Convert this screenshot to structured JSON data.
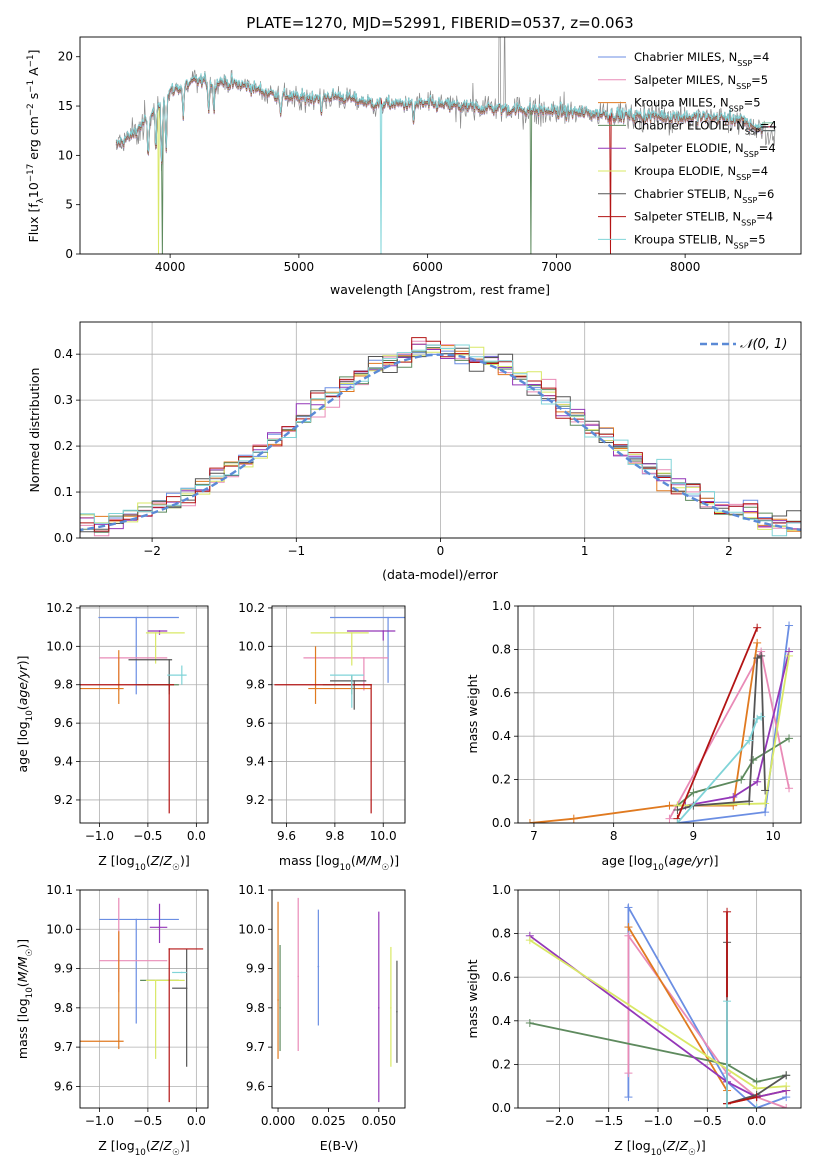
{
  "chart_data": [
    {
      "id": "spectrum",
      "type": "line",
      "title": "PLATE=1270, MJD=52991, FIBERID=0537, z=0.063",
      "xlabel": "wavelength [Angstrom, rest frame]",
      "ylabel": "Flux [f_λ10^-17 erg cm^-2 s^-1 A^-1]",
      "xlim": [
        3300,
        8900
      ],
      "ylim": [
        0,
        22
      ],
      "xticks": [
        4000,
        5000,
        6000,
        7000,
        8000
      ],
      "yticks": [
        0,
        5,
        10,
        15,
        20
      ],
      "continuum": {
        "x": [
          3580,
          3700,
          3850,
          4000,
          4200,
          4400,
          4600,
          4800,
          5000,
          5300,
          5600,
          6000,
          6400,
          6800,
          7200,
          7600,
          8000,
          8400,
          8700
        ],
        "y": [
          11,
          12,
          14,
          16.5,
          17.5,
          17.5,
          17,
          16.2,
          15.8,
          16.0,
          15.2,
          15.2,
          14.8,
          14.6,
          14.3,
          14.0,
          13.9,
          13.7,
          12.0
        ]
      },
      "legend": [
        "Chabrier MILES, N_SSP=4",
        "Salpeter MILES, N_SSP=5",
        "Kroupa MILES, N_SSP=5",
        "Chabrier ELODIE, N_SSP=4",
        "Salpeter ELODIE, N_SSP=4",
        "Kroupa ELODIE, N_SSP=4",
        "Chabrier STELIB, N_SSP=6",
        "Salpeter STELIB, N_SSP=4",
        "Kroupa STELIB, N_SSP=5"
      ],
      "legend_position": "top-right",
      "grid": false
    },
    {
      "id": "residuals",
      "type": "histogram",
      "xlabel": "(data-model)/error",
      "ylabel": "Normed distribution",
      "xlim": [
        -2.5,
        2.5
      ],
      "ylim": [
        0,
        0.47
      ],
      "xticks": [
        -2,
        -1,
        0,
        1,
        2
      ],
      "yticks": [
        0.0,
        0.1,
        0.2,
        0.3,
        0.4
      ],
      "reference_label": "𝒩(0, 1)",
      "legend_position": "top-right",
      "grid": true
    },
    {
      "id": "age_vs_Z",
      "type": "errorbar",
      "xlabel": "Z [log10(Z/Z☉)]",
      "ylabel": "age [log10(age/yr)]",
      "xlim": [
        -1.2,
        0.12
      ],
      "ylim": [
        9.08,
        10.21
      ],
      "xticks": [
        -1.0,
        -0.5,
        0.0
      ],
      "yticks": [
        9.2,
        9.4,
        9.6,
        9.8,
        10.0,
        10.2
      ],
      "points": [
        {
          "x": -0.62,
          "xerr": [
            0.39,
            0.44
          ],
          "y": 10.15,
          "yerr": [
            0.4,
            0.0
          ]
        },
        {
          "x": -0.8,
          "xerr": [
            0.2,
            0.5
          ],
          "y": 9.94,
          "yerr": [
            0.17,
            0.0
          ]
        },
        {
          "x": -0.8,
          "xerr": [
            0.4,
            0.05
          ],
          "y": 9.78,
          "yerr": [
            0.08,
            0.2
          ]
        },
        {
          "x": -0.28,
          "xerr": [
            0.33,
            0.1
          ],
          "y": 9.8,
          "yerr": [
            0.05,
            0.05
          ]
        },
        {
          "x": -0.38,
          "xerr": [
            0.12,
            0.08
          ],
          "y": 10.08,
          "yerr": [
            0.02,
            0.0
          ]
        },
        {
          "x": -0.42,
          "xerr": [
            0.1,
            0.3
          ],
          "y": 10.07,
          "yerr": [
            0.16,
            0.0
          ]
        },
        {
          "x": -0.28,
          "xerr": [
            0.42,
            0.03
          ],
          "y": 9.93,
          "yerr": [
            0.16,
            0.0
          ]
        },
        {
          "x": -0.28,
          "xerr": [
            0.92,
            0.05
          ],
          "y": 9.8,
          "yerr": [
            0.67,
            0.0
          ]
        },
        {
          "x": -0.15,
          "xerr": [
            0.15,
            0.05
          ],
          "y": 9.85,
          "yerr": [
            0.05,
            0.05
          ]
        }
      ],
      "grid": true
    },
    {
      "id": "age_vs_mass",
      "type": "errorbar",
      "xlabel": "mass [log10(M/M☉)]",
      "ylabel": "",
      "xlim": [
        9.54,
        10.09
      ],
      "ylim": [
        9.08,
        10.21
      ],
      "xticks": [
        9.6,
        9.8,
        10.0
      ],
      "yticks": [
        9.2,
        9.4,
        9.6,
        9.8,
        10.0,
        10.2
      ],
      "points": [
        {
          "x": 10.02,
          "xerr": [
            0.24,
            0.1
          ],
          "y": 10.15,
          "yerr": [
            0.34,
            0.0
          ]
        },
        {
          "x": 9.92,
          "xerr": [
            0.25,
            0.1
          ],
          "y": 9.94,
          "yerr": [
            0.17,
            0.0
          ]
        },
        {
          "x": 9.72,
          "xerr": [
            0.03,
            0.23
          ],
          "y": 9.78,
          "yerr": [
            0.08,
            0.22
          ]
        },
        {
          "x": 9.87,
          "xerr": [
            0.12,
            0.08
          ],
          "y": 9.8,
          "yerr": [
            0.05,
            0.05
          ]
        },
        {
          "x": 10.0,
          "xerr": [
            0.15,
            0.05
          ],
          "y": 10.08,
          "yerr": [
            0.05,
            0.0
          ]
        },
        {
          "x": 9.87,
          "xerr": [
            0.17,
            0.07
          ],
          "y": 10.07,
          "yerr": [
            0.17,
            0.0
          ]
        },
        {
          "x": 9.88,
          "xerr": [
            0.1,
            0.05
          ],
          "y": 9.82,
          "yerr": [
            0.15,
            0.0
          ]
        },
        {
          "x": 9.95,
          "xerr": [
            0.4,
            0.0
          ],
          "y": 9.8,
          "yerr": [
            0.67,
            0.0
          ]
        },
        {
          "x": 9.87,
          "xerr": [
            0.09,
            0.05
          ],
          "y": 9.85,
          "yerr": [
            0.17,
            0.0
          ]
        }
      ],
      "grid": true
    },
    {
      "id": "weight_vs_age",
      "type": "line",
      "xlabel": "age [log10(age/yr)]",
      "ylabel": "mass weight",
      "xlim": [
        6.8,
        10.35
      ],
      "ylim": [
        0,
        1.0
      ],
      "xticks": [
        7,
        8,
        9,
        10
      ],
      "yticks": [
        0.0,
        0.2,
        0.4,
        0.6,
        0.8,
        1.0
      ],
      "series": [
        {
          "x": [
            8.8,
            9.9,
            10.2
          ],
          "y": [
            0.0,
            0.05,
            0.91
          ]
        },
        {
          "x": [
            8.7,
            9.85,
            10.2
          ],
          "y": [
            0.02,
            0.79,
            0.16
          ]
        },
        {
          "x": [
            6.95,
            7.5,
            8.7,
            9.5,
            9.8
          ],
          "y": [
            0.0,
            0.02,
            0.08,
            0.08,
            0.83
          ]
        },
        {
          "x": [
            8.8,
            9.0,
            9.6,
            9.75,
            10.2
          ],
          "y": [
            0.08,
            0.14,
            0.2,
            0.29,
            0.39
          ]
        },
        {
          "x": [
            8.9,
            9.5,
            9.8,
            10.2
          ],
          "y": [
            0.08,
            0.12,
            0.19,
            0.79
          ]
        },
        {
          "x": [
            8.8,
            9.9,
            10.2
          ],
          "y": [
            0.08,
            0.09,
            0.77
          ]
        },
        {
          "x": [
            8.8,
            9.0,
            9.7,
            9.8,
            9.85,
            9.9
          ],
          "y": [
            0.06,
            0.08,
            0.1,
            0.76,
            0.77,
            0.15
          ]
        },
        {
          "x": [
            8.8,
            9.8
          ],
          "y": [
            0.02,
            0.9
          ]
        },
        {
          "x": [
            8.8,
            9.7,
            9.8,
            9.85
          ],
          "y": [
            0.0,
            0.38,
            0.48,
            0.49
          ]
        }
      ],
      "grid": true
    },
    {
      "id": "mass_vs_Z",
      "type": "errorbar",
      "xlabel": "Z [log10(Z/Z☉)]",
      "ylabel": "mass [log10(M/M☉)]",
      "xlim": [
        -1.2,
        0.12
      ],
      "ylim": [
        9.545,
        10.1
      ],
      "xticks": [
        -1.0,
        -0.5,
        0.0
      ],
      "yticks": [
        9.6,
        9.7,
        9.8,
        9.9,
        10.0,
        10.1
      ],
      "points": [
        {
          "x": -0.62,
          "xerr": [
            0.38,
            0.44
          ],
          "y": 10.025,
          "yerr": [
            0.265,
            0.0
          ]
        },
        {
          "x": -0.8,
          "xerr": [
            0.2,
            0.5
          ],
          "y": 9.92,
          "yerr": [
            0.08,
            0.16
          ]
        },
        {
          "x": -0.8,
          "xerr": [
            0.4,
            0.05
          ],
          "y": 9.715,
          "yerr": [
            0.02,
            0.28
          ]
        },
        {
          "x": -0.28,
          "xerr": [
            0.3,
            0.1
          ],
          "y": 9.87,
          "yerr": [
            0.0,
            0.0
          ]
        },
        {
          "x": -0.38,
          "xerr": [
            0.1,
            0.08
          ],
          "y": 10.005,
          "yerr": [
            0.04,
            0.06
          ]
        },
        {
          "x": -0.42,
          "xerr": [
            0.1,
            0.3
          ],
          "y": 9.87,
          "yerr": [
            0.2,
            0.0
          ]
        },
        {
          "x": -0.1,
          "xerr": [
            0.15,
            0.0
          ],
          "y": 9.85,
          "yerr": [
            0.2,
            0.1
          ]
        },
        {
          "x": -0.28,
          "xerr": [
            0.0,
            0.35
          ],
          "y": 9.95,
          "yerr": [
            0.39,
            0.0
          ]
        },
        {
          "x": -0.15,
          "xerr": [
            0.1,
            0.05
          ],
          "y": 9.89,
          "yerr": [
            0.0,
            0.0
          ]
        }
      ],
      "grid": true
    },
    {
      "id": "mass_vs_ebv",
      "type": "errorbar",
      "xlabel": "E(B-V)",
      "ylabel": "",
      "xlim": [
        -0.003,
        0.063
      ],
      "ylim": [
        9.545,
        10.1
      ],
      "xticks": [
        0.0,
        0.025,
        0.05
      ],
      "xticklabels": [
        "0.000",
        "0.025",
        "0.050"
      ],
      "yticks": [
        9.6,
        9.7,
        9.8,
        9.9,
        10.0,
        10.1
      ],
      "points": [
        {
          "x": 0.02,
          "y": 9.905,
          "yerr": [
            0.15,
            0.145
          ]
        },
        {
          "x": 0.01,
          "y": 9.88,
          "yerr": [
            0.19,
            0.2
          ]
        },
        {
          "x": 0.0,
          "y": 9.82,
          "yerr": [
            0.15,
            0.25
          ]
        },
        {
          "x": 0.001,
          "y": 9.8,
          "yerr": [
            0.11,
            0.16
          ]
        },
        {
          "x": 0.05,
          "y": 9.8,
          "yerr": [
            0.24,
            0.245
          ]
        },
        {
          "x": 0.056,
          "y": 9.8,
          "yerr": [
            0.15,
            0.155
          ]
        },
        {
          "x": 0.059,
          "y": 9.79,
          "yerr": [
            0.13,
            0.13
          ]
        }
      ],
      "grid": false
    },
    {
      "id": "weight_vs_Z",
      "type": "line",
      "xlabel": "Z [log10(Z/Z☉)]",
      "ylabel": "mass weight",
      "xlim": [
        -2.42,
        0.45
      ],
      "ylim": [
        0,
        1.0
      ],
      "xticks": [
        -2.0,
        -1.5,
        -1.0,
        -0.5,
        0.0
      ],
      "yticks": [
        0.0,
        0.2,
        0.4,
        0.6,
        0.8,
        1.0
      ],
      "series": [
        {
          "x": [
            -1.3,
            -1.3,
            -0.3,
            0.0,
            0.3
          ],
          "y": [
            0.05,
            0.92,
            0.12,
            0.0,
            0.05
          ]
        },
        {
          "x": [
            -1.3,
            -1.3,
            -0.3,
            0.0,
            0.3
          ],
          "y": [
            0.16,
            0.79,
            0.16,
            0.05,
            0.0
          ]
        },
        {
          "x": [
            -1.3,
            -0.3,
            -0.3,
            0.0,
            0.3
          ],
          "y": [
            0.83,
            0.08,
            0.02,
            0.05,
            0.08
          ]
        },
        {
          "x": [
            -2.3,
            -0.3,
            0.0,
            0.3
          ],
          "y": [
            0.39,
            0.2,
            0.12,
            0.15
          ]
        },
        {
          "x": [
            -2.3,
            -0.3,
            0.0,
            0.3
          ],
          "y": [
            0.79,
            0.12,
            0.05,
            0.08
          ]
        },
        {
          "x": [
            -2.3,
            0.0,
            0.3
          ],
          "y": [
            0.77,
            0.09,
            0.1
          ]
        },
        {
          "x": [
            -0.3,
            -0.3,
            0.0,
            0.3
          ],
          "y": [
            0.76,
            0.02,
            0.06,
            0.15
          ]
        },
        {
          "x": [
            -0.3,
            -0.3,
            0.0
          ],
          "y": [
            0.9,
            0.02,
            0.05
          ]
        },
        {
          "x": [
            -0.3,
            -0.3,
            0.0
          ],
          "y": [
            0.49,
            0.0,
            0.0
          ]
        }
      ],
      "grid": true
    }
  ],
  "series_colors": [
    "#6b8ee3",
    "#e98bb7",
    "#e07a20",
    "#5e8a5e",
    "#9437b8",
    "#d9e866",
    "#555555",
    "#b31414",
    "#80d4d8"
  ]
}
